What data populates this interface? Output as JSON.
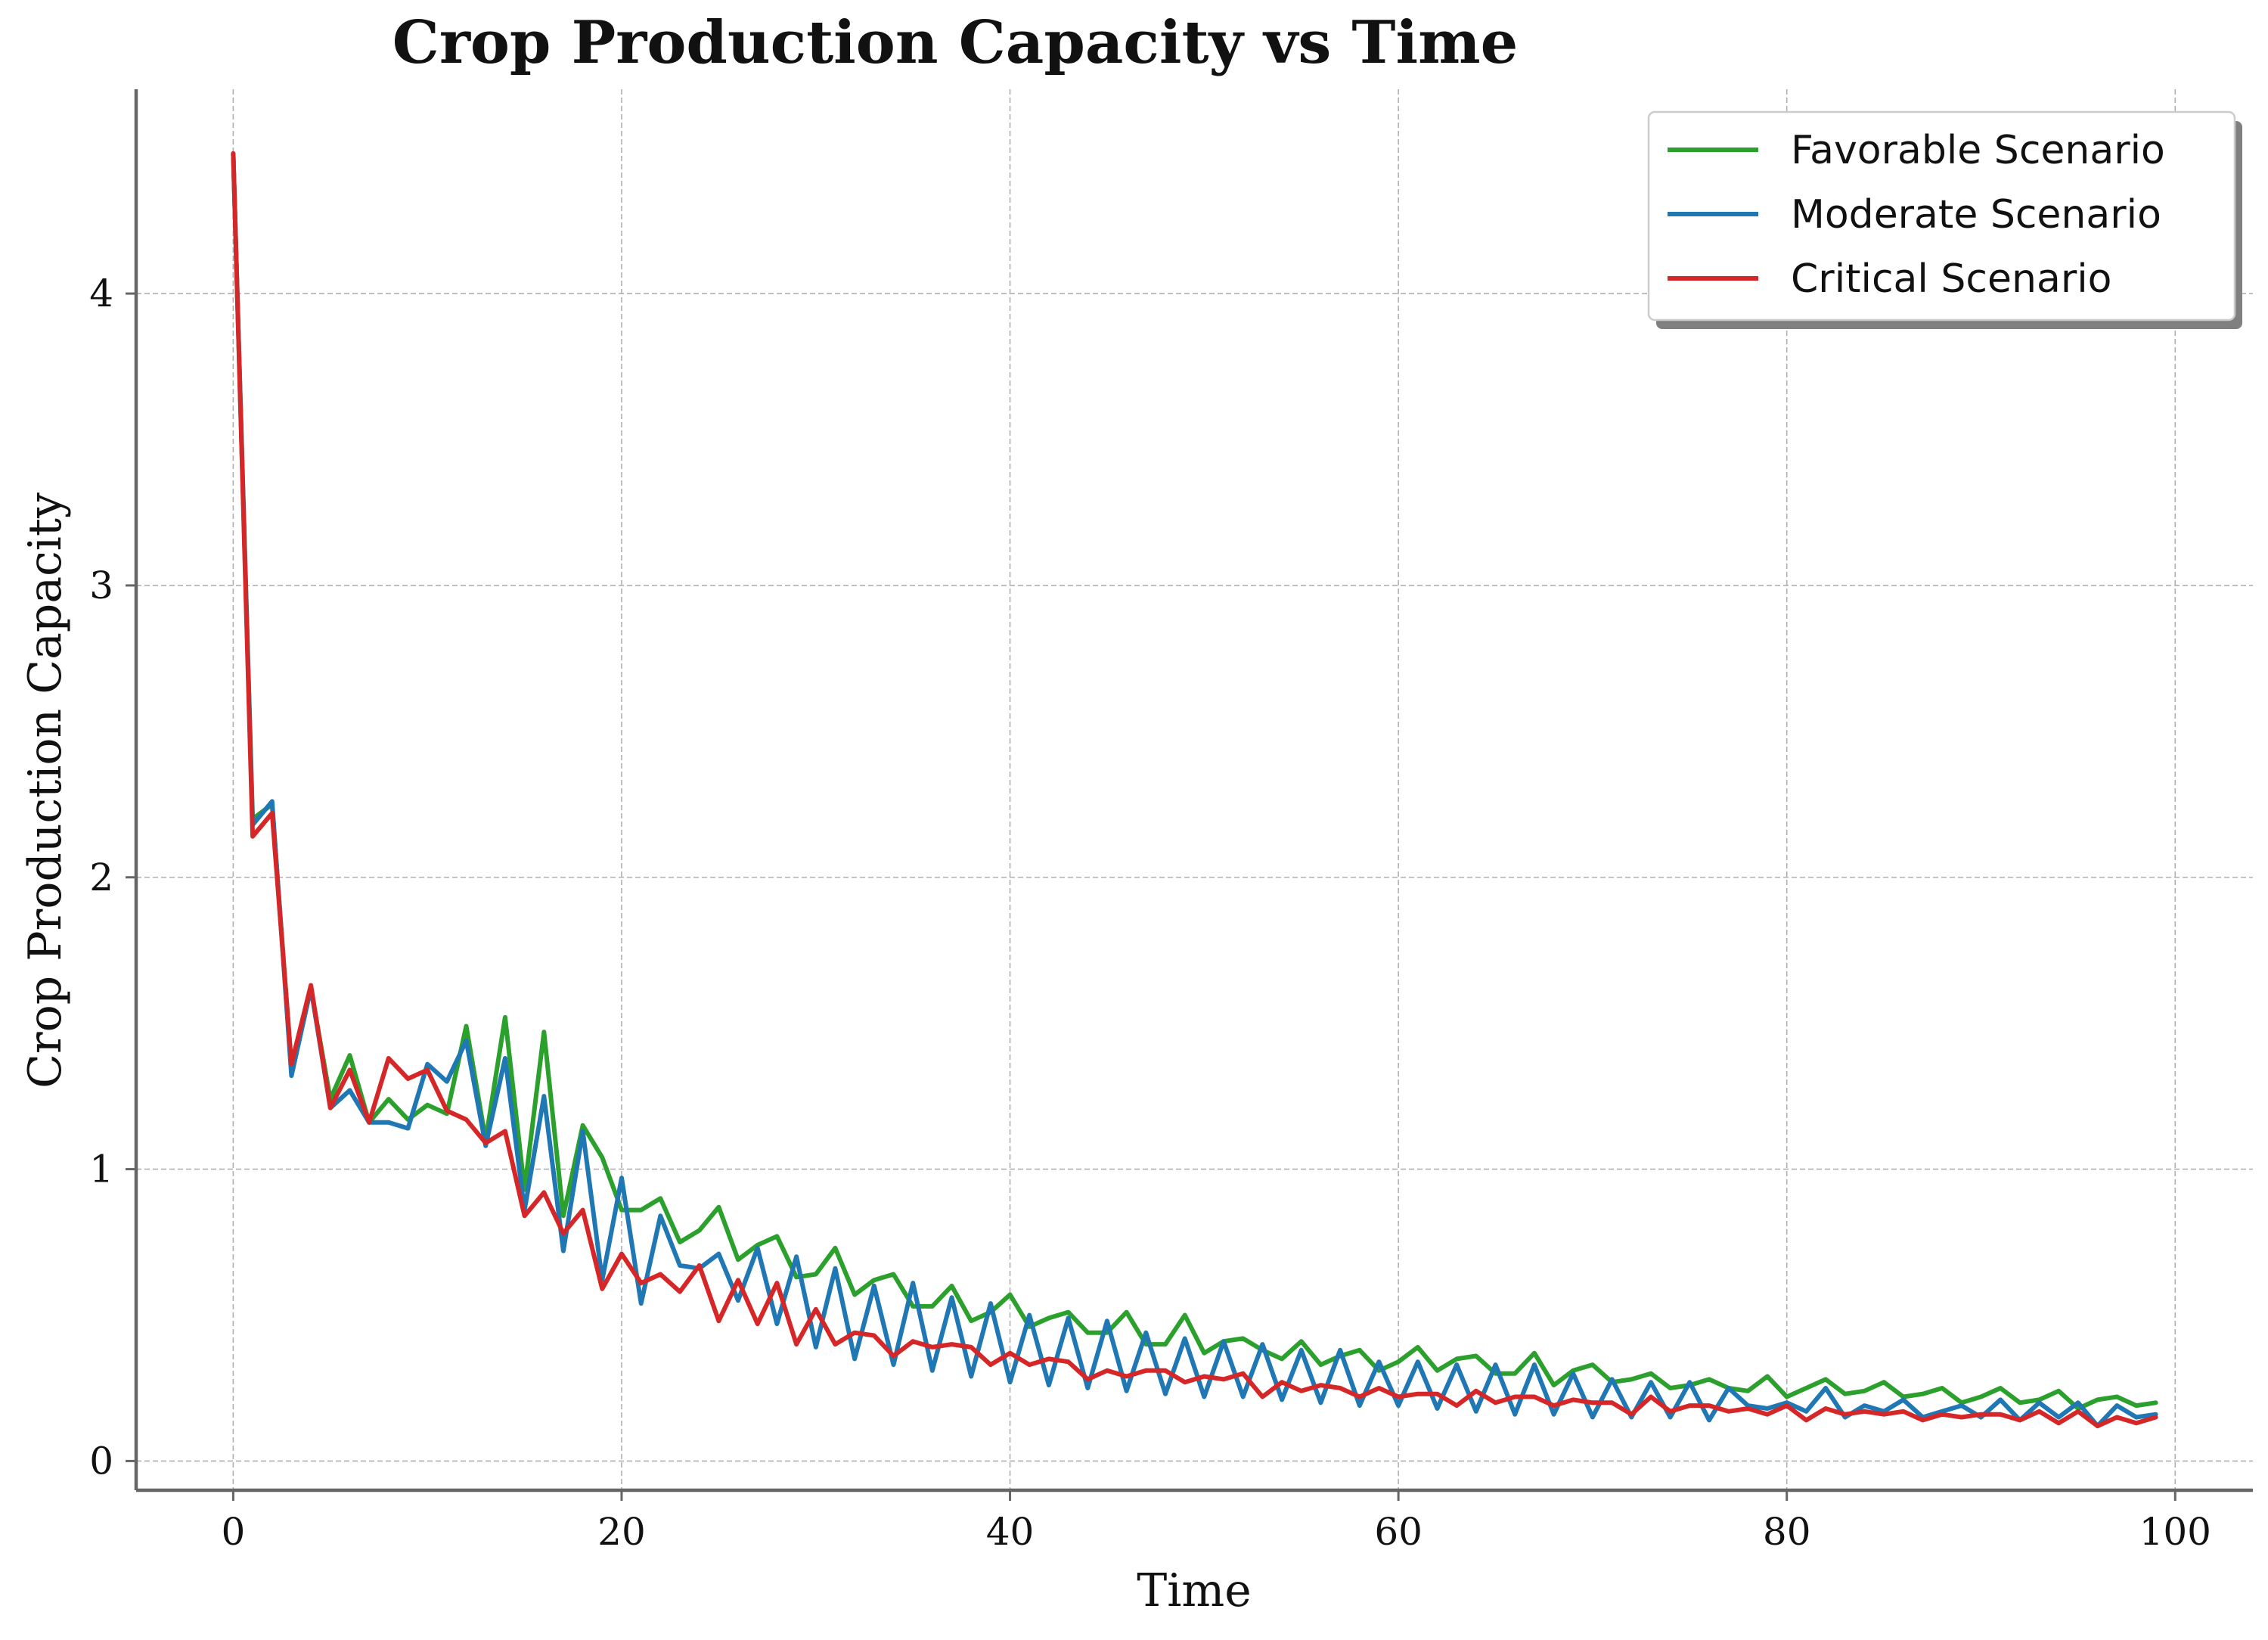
{
  "chart_data": {
    "type": "line",
    "title": "Crop Production Capacity vs Time",
    "xlabel": "Time",
    "ylabel": "Crop Production Capacity",
    "xlim": [
      -5,
      104
    ],
    "ylim": [
      -0.1,
      4.7
    ],
    "x_ticks": [
      0,
      20,
      40,
      60,
      80,
      100
    ],
    "y_ticks": [
      0,
      1,
      2,
      3,
      4
    ],
    "x_tick_labels": [
      "0",
      "20",
      "40",
      "60",
      "80",
      "100"
    ],
    "y_tick_labels": [
      "0",
      "1",
      "2",
      "3",
      "4"
    ],
    "grid": true,
    "legend_position": "top-right",
    "x": [
      0,
      1,
      2,
      3,
      4,
      5,
      6,
      7,
      8,
      9,
      10,
      11,
      12,
      13,
      14,
      15,
      16,
      17,
      18,
      19,
      20,
      21,
      22,
      23,
      24,
      25,
      26,
      27,
      28,
      29,
      30,
      31,
      32,
      33,
      34,
      35,
      36,
      37,
      38,
      39,
      40,
      41,
      42,
      43,
      44,
      45,
      46,
      47,
      48,
      49,
      50,
      51,
      52,
      53,
      54,
      55,
      56,
      57,
      58,
      59,
      60,
      61,
      62,
      63,
      64,
      65,
      66,
      67,
      68,
      69,
      70,
      71,
      72,
      73,
      74,
      75,
      76,
      77,
      78,
      79,
      80,
      81,
      82,
      83,
      84,
      85,
      86,
      87,
      88,
      89,
      90,
      91,
      92,
      93,
      94,
      95,
      96,
      97,
      98,
      99
    ],
    "series": [
      {
        "name": "Favorable Scenario",
        "color": "#2ca02c",
        "values": [
          4.48,
          2.2,
          2.25,
          1.35,
          1.62,
          1.24,
          1.39,
          1.16,
          1.24,
          1.17,
          1.22,
          1.19,
          1.49,
          1.1,
          1.52,
          0.93,
          1.47,
          0.84,
          1.15,
          1.04,
          0.86,
          0.86,
          0.9,
          0.75,
          0.79,
          0.87,
          0.69,
          0.74,
          0.77,
          0.63,
          0.64,
          0.73,
          0.57,
          0.62,
          0.64,
          0.53,
          0.53,
          0.6,
          0.48,
          0.51,
          0.57,
          0.46,
          0.49,
          0.51,
          0.44,
          0.44,
          0.51,
          0.4,
          0.4,
          0.5,
          0.37,
          0.41,
          0.42,
          0.38,
          0.35,
          0.41,
          0.33,
          0.36,
          0.38,
          0.31,
          0.34,
          0.39,
          0.31,
          0.35,
          0.36,
          0.3,
          0.3,
          0.37,
          0.26,
          0.31,
          0.33,
          0.27,
          0.28,
          0.3,
          0.25,
          0.26,
          0.28,
          0.25,
          0.24,
          0.29,
          0.22,
          0.25,
          0.28,
          0.23,
          0.24,
          0.27,
          0.22,
          0.23,
          0.25,
          0.2,
          0.22,
          0.25,
          0.2,
          0.21,
          0.24,
          0.18,
          0.21,
          0.22,
          0.19,
          0.2
        ]
      },
      {
        "name": "Moderate Scenario",
        "color": "#1f77b4",
        "values": [
          4.48,
          2.18,
          2.26,
          1.32,
          1.62,
          1.21,
          1.27,
          1.16,
          1.16,
          1.14,
          1.36,
          1.3,
          1.44,
          1.08,
          1.38,
          0.86,
          1.25,
          0.72,
          1.13,
          0.62,
          0.97,
          0.54,
          0.84,
          0.67,
          0.66,
          0.71,
          0.55,
          0.73,
          0.47,
          0.7,
          0.39,
          0.66,
          0.35,
          0.6,
          0.33,
          0.61,
          0.31,
          0.56,
          0.29,
          0.54,
          0.27,
          0.5,
          0.26,
          0.49,
          0.25,
          0.48,
          0.24,
          0.44,
          0.23,
          0.42,
          0.22,
          0.41,
          0.22,
          0.4,
          0.21,
          0.38,
          0.2,
          0.38,
          0.19,
          0.34,
          0.19,
          0.34,
          0.18,
          0.33,
          0.17,
          0.33,
          0.16,
          0.33,
          0.16,
          0.3,
          0.15,
          0.28,
          0.15,
          0.27,
          0.15,
          0.27,
          0.14,
          0.25,
          0.19,
          0.18,
          0.2,
          0.17,
          0.25,
          0.15,
          0.19,
          0.17,
          0.21,
          0.15,
          0.17,
          0.19,
          0.15,
          0.21,
          0.14,
          0.2,
          0.15,
          0.2,
          0.12,
          0.19,
          0.15,
          0.16
        ]
      },
      {
        "name": "Critical Scenario",
        "color": "#d62728",
        "values": [
          4.48,
          2.14,
          2.22,
          1.36,
          1.63,
          1.21,
          1.34,
          1.16,
          1.38,
          1.31,
          1.34,
          1.2,
          1.17,
          1.09,
          1.13,
          0.84,
          0.92,
          0.78,
          0.86,
          0.59,
          0.71,
          0.61,
          0.64,
          0.58,
          0.67,
          0.48,
          0.62,
          0.47,
          0.61,
          0.4,
          0.52,
          0.4,
          0.44,
          0.43,
          0.36,
          0.41,
          0.39,
          0.4,
          0.39,
          0.33,
          0.37,
          0.33,
          0.35,
          0.34,
          0.28,
          0.31,
          0.29,
          0.31,
          0.31,
          0.27,
          0.29,
          0.28,
          0.3,
          0.22,
          0.27,
          0.24,
          0.26,
          0.25,
          0.22,
          0.25,
          0.22,
          0.23,
          0.23,
          0.19,
          0.24,
          0.2,
          0.22,
          0.22,
          0.19,
          0.21,
          0.2,
          0.2,
          0.16,
          0.22,
          0.17,
          0.19,
          0.19,
          0.17,
          0.18,
          0.16,
          0.19,
          0.14,
          0.18,
          0.16,
          0.17,
          0.16,
          0.17,
          0.14,
          0.16,
          0.15,
          0.16,
          0.16,
          0.14,
          0.17,
          0.13,
          0.17,
          0.12,
          0.15,
          0.13,
          0.15
        ]
      }
    ]
  }
}
